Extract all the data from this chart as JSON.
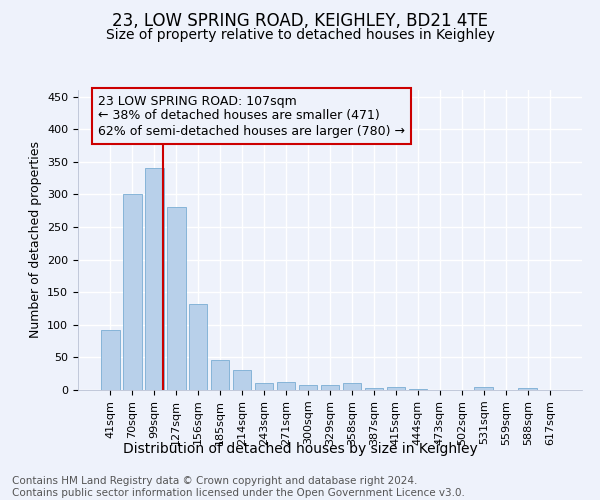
{
  "title": "23, LOW SPRING ROAD, KEIGHLEY, BD21 4TE",
  "subtitle": "Size of property relative to detached houses in Keighley",
  "xlabel": "Distribution of detached houses by size in Keighley",
  "ylabel": "Number of detached properties",
  "footer_line1": "Contains HM Land Registry data © Crown copyright and database right 2024.",
  "footer_line2": "Contains public sector information licensed under the Open Government Licence v3.0.",
  "categories": [
    "41sqm",
    "70sqm",
    "99sqm",
    "127sqm",
    "156sqm",
    "185sqm",
    "214sqm",
    "243sqm",
    "271sqm",
    "300sqm",
    "329sqm",
    "358sqm",
    "387sqm",
    "415sqm",
    "444sqm",
    "473sqm",
    "502sqm",
    "531sqm",
    "559sqm",
    "588sqm",
    "617sqm"
  ],
  "values": [
    92,
    300,
    340,
    280,
    132,
    46,
    30,
    10,
    13,
    8,
    8,
    10,
    3,
    4,
    2,
    0,
    0,
    5,
    0,
    3,
    0
  ],
  "bar_color": "#b8d0ea",
  "bar_edge_color": "#7aadd4",
  "annotation_box_text": "23 LOW SPRING ROAD: 107sqm\n← 38% of detached houses are smaller (471)\n62% of semi-detached houses are larger (780) →",
  "annotation_box_color": "#cc0000",
  "vline_color": "#cc0000",
  "ylim": [
    0,
    460
  ],
  "yticks": [
    0,
    50,
    100,
    150,
    200,
    250,
    300,
    350,
    400,
    450
  ],
  "background_color": "#eef2fb",
  "grid_color": "#ffffff",
  "title_fontsize": 12,
  "subtitle_fontsize": 10,
  "ylabel_fontsize": 9,
  "xlabel_fontsize": 10,
  "tick_fontsize": 8,
  "annotation_fontsize": 9,
  "footer_fontsize": 7.5
}
